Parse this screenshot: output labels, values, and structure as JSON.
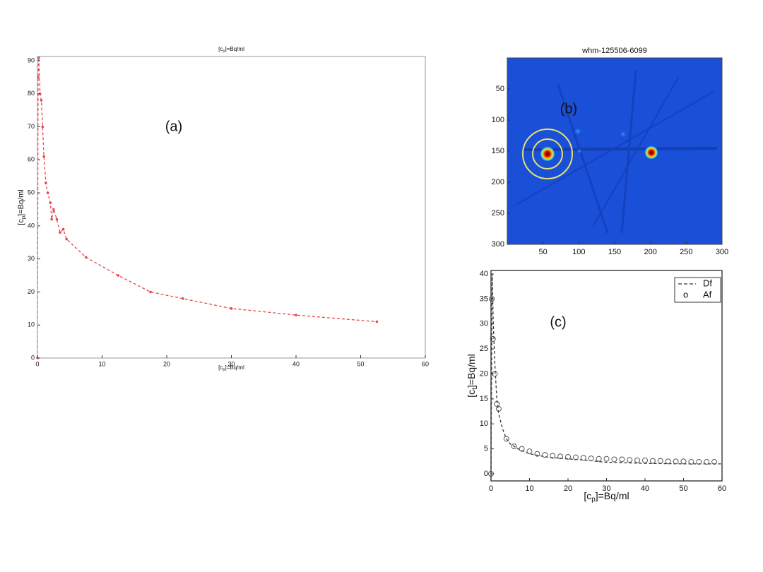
{
  "chart_data": [
    {
      "type": "line",
      "title": {
        "pre": "[c",
        "sub": "p",
        "post": "]=Bq/ml"
      },
      "xlabel": {
        "pre": "[c",
        "sub": "p",
        "post": "]=Bq/ml"
      },
      "ylabel": {
        "pre": "[c",
        "sub": "p",
        "post": "]=Bq/ml"
      },
      "annotation": "(a)",
      "xlim": [
        0,
        60
      ],
      "xticks": [
        0,
        10,
        20,
        30,
        40,
        50,
        60
      ],
      "ylim": [
        0,
        90
      ],
      "yticks": [
        0,
        10,
        20,
        30,
        40,
        50,
        60,
        70,
        80,
        90
      ],
      "series": [
        {
          "color": "#e8474a",
          "dash": true,
          "markers": true,
          "x": [
            0,
            0.1,
            0.2,
            0.4,
            0.6,
            0.8,
            1,
            1.3,
            1.6,
            2,
            2.2,
            2.5,
            3,
            3.5,
            4,
            4.5,
            7.5,
            12.5,
            17.5,
            22.5,
            30,
            40,
            52.5
          ],
          "values": [
            0,
            85,
            91,
            80,
            78,
            70,
            61,
            53,
            50,
            47,
            42,
            45,
            42,
            38,
            39,
            36,
            30.5,
            25,
            20,
            18,
            15,
            13,
            11
          ]
        }
      ]
    },
    {
      "type": "image",
      "title": "whm-125506-6099",
      "annotation": "(b)",
      "xlim": [
        0,
        300
      ],
      "xticks": [
        50,
        100,
        150,
        200,
        250,
        300
      ],
      "ylim": [
        0,
        300
      ],
      "yticks": [
        50,
        100,
        150,
        200,
        250,
        300
      ]
    },
    {
      "type": "line",
      "xlabel": {
        "pre": "[c",
        "sub": "p",
        "post": "]=Bq/ml"
      },
      "ylabel": {
        "pre": "[c",
        "sub": "t",
        "post": "]=Bq/ml"
      },
      "annotation": "(c)",
      "legend": "top-right",
      "xlim": [
        0,
        60
      ],
      "xticks": [
        0,
        10,
        20,
        30,
        40,
        50,
        60
      ],
      "ylim": [
        0,
        40
      ],
      "yticks": [
        0,
        5,
        10,
        15,
        20,
        25,
        30,
        35,
        40
      ],
      "series": [
        {
          "name": "Df",
          "color": "#333333",
          "dash": true,
          "x": [
            0,
            0.3,
            0.6,
            1,
            1.5,
            2,
            3,
            4,
            5,
            7,
            10,
            15,
            20,
            25,
            30,
            35,
            40,
            50,
            60
          ],
          "values": [
            0,
            40,
            30,
            22,
            15,
            12,
            9,
            7,
            6,
            5,
            4,
            3.3,
            3,
            2.7,
            2.3,
            2.2,
            2.1,
            2,
            2
          ]
        },
        {
          "name": "Af",
          "color": "#555555",
          "circles": true,
          "marker_label": "o",
          "x": [
            0,
            0.2,
            0.5,
            1,
            1.5,
            2,
            4,
            6,
            8,
            10,
            12,
            14,
            16,
            18,
            20,
            22,
            24,
            26,
            28,
            30,
            32,
            34,
            36,
            38,
            40,
            42,
            44,
            46,
            48,
            50,
            52,
            54,
            56,
            58
          ],
          "values": [
            0,
            35,
            27,
            20,
            14,
            13,
            7,
            5.5,
            5,
            4.5,
            4,
            3.8,
            3.6,
            3.5,
            3.4,
            3.3,
            3.2,
            3.1,
            3,
            3,
            2.9,
            2.9,
            2.8,
            2.7,
            2.7,
            2.6,
            2.6,
            2.5,
            2.5,
            2.5,
            2.4,
            2.4,
            2.4,
            2.4
          ]
        }
      ]
    }
  ]
}
